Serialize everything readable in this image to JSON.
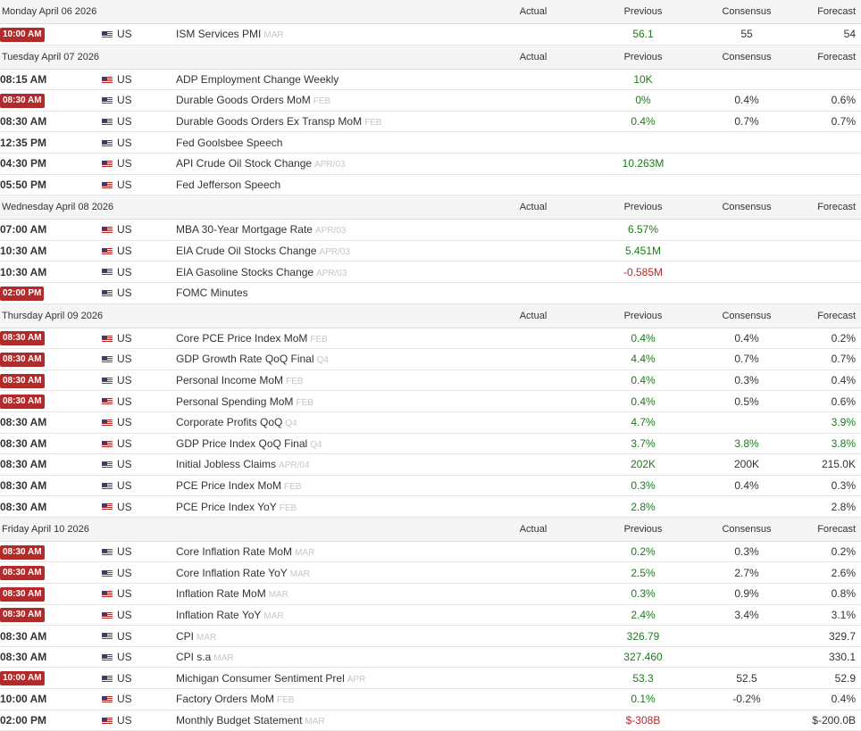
{
  "columns": {
    "actual": "Actual",
    "previous": "Previous",
    "consensus": "Consensus",
    "forecast": "Forecast"
  },
  "colors": {
    "highlight": "#b22b2b",
    "positive": "#1d7a1d",
    "negative": "#b22b2b"
  },
  "days": [
    {
      "date": "Monday April 06 2026",
      "events": [
        {
          "time": "10:00 AM",
          "hl": true,
          "country": "US",
          "name": "ISM Services PMI",
          "ref": "MAR",
          "actual": "",
          "previous": "56.1",
          "prev_color": "pos",
          "consensus": "55",
          "forecast": "54",
          "fc_color": "neu"
        }
      ]
    },
    {
      "date": "Tuesday April 07 2026",
      "events": [
        {
          "time": "08:15 AM",
          "hl": false,
          "country": "US",
          "name": "ADP Employment Change Weekly",
          "ref": "",
          "actual": "",
          "previous": "10K",
          "prev_color": "pos",
          "consensus": "",
          "forecast": "",
          "fc_color": "neu"
        },
        {
          "time": "08:30 AM",
          "hl": true,
          "country": "US",
          "name": "Durable Goods Orders MoM",
          "ref": "FEB",
          "actual": "",
          "previous": "0%",
          "prev_color": "pos",
          "consensus": "0.4%",
          "forecast": "0.6%",
          "fc_color": "neu"
        },
        {
          "time": "08:30 AM",
          "hl": false,
          "country": "US",
          "name": "Durable Goods Orders Ex Transp MoM",
          "ref": "FEB",
          "actual": "",
          "previous": "0.4%",
          "prev_color": "pos",
          "consensus": "0.7%",
          "forecast": "0.7%",
          "fc_color": "neu"
        },
        {
          "time": "12:35 PM",
          "hl": false,
          "country": "US",
          "name": "Fed Goolsbee Speech",
          "ref": "",
          "actual": "",
          "previous": "",
          "prev_color": "neu",
          "consensus": "",
          "forecast": "",
          "fc_color": "neu"
        },
        {
          "time": "04:30 PM",
          "hl": false,
          "country": "US",
          "name": "API Crude Oil Stock Change",
          "ref": "APR/03",
          "actual": "",
          "previous": "10.263M",
          "prev_color": "pos",
          "consensus": "",
          "forecast": "",
          "fc_color": "neu"
        },
        {
          "time": "05:50 PM",
          "hl": false,
          "country": "US",
          "name": "Fed Jefferson Speech",
          "ref": "",
          "actual": "",
          "previous": "",
          "prev_color": "neu",
          "consensus": "",
          "forecast": "",
          "fc_color": "neu"
        }
      ]
    },
    {
      "date": "Wednesday April 08 2026",
      "events": [
        {
          "time": "07:00 AM",
          "hl": false,
          "country": "US",
          "name": "MBA 30-Year Mortgage Rate",
          "ref": "APR/03",
          "actual": "",
          "previous": "6.57%",
          "prev_color": "pos",
          "consensus": "",
          "forecast": "",
          "fc_color": "neu"
        },
        {
          "time": "10:30 AM",
          "hl": false,
          "country": "US",
          "name": "EIA Crude Oil Stocks Change",
          "ref": "APR/03",
          "actual": "",
          "previous": "5.451M",
          "prev_color": "pos",
          "consensus": "",
          "forecast": "",
          "fc_color": "neu"
        },
        {
          "time": "10:30 AM",
          "hl": false,
          "country": "US",
          "name": "EIA Gasoline Stocks Change",
          "ref": "APR/03",
          "actual": "",
          "previous": "-0.585M",
          "prev_color": "neg",
          "consensus": "",
          "forecast": "",
          "fc_color": "neu"
        },
        {
          "time": "02:00 PM",
          "hl": true,
          "country": "US",
          "name": "FOMC Minutes",
          "ref": "",
          "actual": "",
          "previous": "",
          "prev_color": "neu",
          "consensus": "",
          "forecast": "",
          "fc_color": "neu"
        }
      ]
    },
    {
      "date": "Thursday April 09 2026",
      "events": [
        {
          "time": "08:30 AM",
          "hl": true,
          "country": "US",
          "name": "Core PCE Price Index MoM",
          "ref": "FEB",
          "actual": "",
          "previous": "0.4%",
          "prev_color": "pos",
          "consensus": "0.4%",
          "forecast": "0.2%",
          "fc_color": "neu"
        },
        {
          "time": "08:30 AM",
          "hl": true,
          "country": "US",
          "name": "GDP Growth Rate QoQ Final",
          "ref": "Q4",
          "actual": "",
          "previous": "4.4%",
          "prev_color": "pos",
          "consensus": "0.7%",
          "forecast": "0.7%",
          "fc_color": "neu"
        },
        {
          "time": "08:30 AM",
          "hl": true,
          "country": "US",
          "name": "Personal Income MoM",
          "ref": "FEB",
          "actual": "",
          "previous": "0.4%",
          "prev_color": "pos",
          "consensus": "0.3%",
          "forecast": "0.4%",
          "fc_color": "neu"
        },
        {
          "time": "08:30 AM",
          "hl": true,
          "country": "US",
          "name": "Personal Spending MoM",
          "ref": "FEB",
          "actual": "",
          "previous": "0.4%",
          "prev_color": "pos",
          "consensus": "0.5%",
          "forecast": "0.6%",
          "fc_color": "neu"
        },
        {
          "time": "08:30 AM",
          "hl": false,
          "country": "US",
          "name": "Corporate Profits QoQ",
          "ref": "Q4",
          "actual": "",
          "previous": "4.7%",
          "prev_color": "pos",
          "consensus": "",
          "forecast": "3.9%",
          "fc_color": "pos"
        },
        {
          "time": "08:30 AM",
          "hl": false,
          "country": "US",
          "name": "GDP Price Index QoQ Final",
          "ref": "Q4",
          "actual": "",
          "previous": "3.7%",
          "prev_color": "pos",
          "consensus": "3.8%",
          "cons_color": "pos",
          "forecast": "3.8%",
          "fc_color": "pos"
        },
        {
          "time": "08:30 AM",
          "hl": false,
          "country": "US",
          "name": "Initial Jobless Claims",
          "ref": "APR/04",
          "actual": "",
          "previous": "202K",
          "prev_color": "pos",
          "consensus": "200K",
          "forecast": "215.0K",
          "fc_color": "neu"
        },
        {
          "time": "08:30 AM",
          "hl": false,
          "country": "US",
          "name": "PCE Price Index MoM",
          "ref": "FEB",
          "actual": "",
          "previous": "0.3%",
          "prev_color": "pos",
          "consensus": "0.4%",
          "forecast": "0.3%",
          "fc_color": "neu"
        },
        {
          "time": "08:30 AM",
          "hl": false,
          "country": "US",
          "name": "PCE Price Index YoY",
          "ref": "FEB",
          "actual": "",
          "previous": "2.8%",
          "prev_color": "pos",
          "consensus": "",
          "forecast": "2.8%",
          "fc_color": "neu"
        }
      ]
    },
    {
      "date": "Friday April 10 2026",
      "events": [
        {
          "time": "08:30 AM",
          "hl": true,
          "country": "US",
          "name": "Core Inflation Rate MoM",
          "ref": "MAR",
          "actual": "",
          "previous": "0.2%",
          "prev_color": "pos",
          "consensus": "0.3%",
          "forecast": "0.2%",
          "fc_color": "neu"
        },
        {
          "time": "08:30 AM",
          "hl": true,
          "country": "US",
          "name": "Core Inflation Rate YoY",
          "ref": "MAR",
          "actual": "",
          "previous": "2.5%",
          "prev_color": "pos",
          "consensus": "2.7%",
          "forecast": "2.6%",
          "fc_color": "neu"
        },
        {
          "time": "08:30 AM",
          "hl": true,
          "country": "US",
          "name": "Inflation Rate MoM",
          "ref": "MAR",
          "actual": "",
          "previous": "0.3%",
          "prev_color": "pos",
          "consensus": "0.9%",
          "forecast": "0.8%",
          "fc_color": "neu"
        },
        {
          "time": "08:30 AM",
          "hl": true,
          "country": "US",
          "name": "Inflation Rate YoY",
          "ref": "MAR",
          "actual": "",
          "previous": "2.4%",
          "prev_color": "pos",
          "consensus": "3.4%",
          "forecast": "3.1%",
          "fc_color": "neu"
        },
        {
          "time": "08:30 AM",
          "hl": false,
          "country": "US",
          "name": "CPI",
          "ref": "MAR",
          "actual": "",
          "previous": "326.79",
          "prev_color": "pos",
          "consensus": "",
          "forecast": "329.7",
          "fc_color": "neu"
        },
        {
          "time": "08:30 AM",
          "hl": false,
          "country": "US",
          "name": "CPI s.a",
          "ref": "MAR",
          "actual": "",
          "previous": "327.460",
          "prev_color": "pos",
          "consensus": "",
          "forecast": "330.1",
          "fc_color": "neu"
        },
        {
          "time": "10:00 AM",
          "hl": true,
          "country": "US",
          "name": "Michigan Consumer Sentiment Prel",
          "ref": "APR",
          "actual": "",
          "previous": "53.3",
          "prev_color": "pos",
          "consensus": "52.5",
          "forecast": "52.9",
          "fc_color": "neu"
        },
        {
          "time": "10:00 AM",
          "hl": false,
          "country": "US",
          "name": "Factory Orders MoM",
          "ref": "FEB",
          "actual": "",
          "previous": "0.1%",
          "prev_color": "pos",
          "consensus": "-0.2%",
          "forecast": "0.4%",
          "fc_color": "neu"
        },
        {
          "time": "02:00 PM",
          "hl": false,
          "country": "US",
          "name": "Monthly Budget Statement",
          "ref": "MAR",
          "actual": "",
          "previous": "$-308B",
          "prev_color": "neg",
          "consensus": "",
          "forecast": "$-200.0B",
          "fc_color": "neu"
        }
      ]
    }
  ]
}
